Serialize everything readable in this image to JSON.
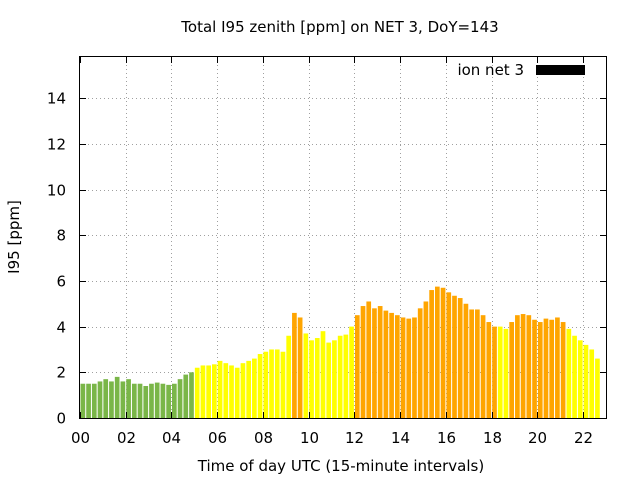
{
  "chart_data": {
    "type": "bar",
    "title": "Total I95 zenith [ppm] on NET 3, DoY=143",
    "xlabel": "Time of day UTC (15-minute intervals)",
    "ylabel": "I95 [ppm]",
    "xlim": [
      0,
      23
    ],
    "ylim": [
      0,
      15.8
    ],
    "x_ticks": [
      "00",
      "02",
      "04",
      "06",
      "08",
      "10",
      "12",
      "14",
      "16",
      "18",
      "20",
      "22"
    ],
    "y_ticks": [
      "0",
      "2",
      "4",
      "6",
      "8",
      "10",
      "12",
      "14"
    ],
    "grid": true,
    "legend": {
      "position": "top-right",
      "entries": [
        {
          "label": "ion net 3",
          "color": "#000000"
        }
      ]
    },
    "interval_hours": 0.25,
    "colors": {
      "green": "#7ab648",
      "yellow": "#ffff00",
      "orange": "#ffa500"
    },
    "values": [
      1.5,
      1.5,
      1.5,
      1.6,
      1.7,
      1.6,
      1.8,
      1.6,
      1.7,
      1.5,
      1.5,
      1.4,
      1.5,
      1.55,
      1.5,
      1.45,
      1.5,
      1.7,
      1.9,
      2.0,
      2.2,
      2.3,
      2.3,
      2.35,
      2.5,
      2.4,
      2.3,
      2.2,
      2.4,
      2.5,
      2.6,
      2.8,
      2.9,
      3.0,
      3.0,
      2.9,
      3.6,
      4.6,
      4.4,
      3.7,
      3.4,
      3.5,
      3.8,
      3.3,
      3.4,
      3.6,
      3.65,
      4.0,
      4.5,
      4.9,
      5.1,
      4.8,
      4.9,
      4.7,
      4.6,
      4.5,
      4.4,
      4.35,
      4.4,
      4.8,
      5.1,
      5.6,
      5.75,
      5.7,
      5.5,
      5.35,
      5.25,
      5.0,
      4.75,
      4.75,
      4.5,
      4.2,
      4.0,
      4.0,
      3.9,
      4.2,
      4.5,
      4.55,
      4.5,
      4.3,
      4.2,
      4.35,
      4.3,
      4.4,
      4.2,
      3.9,
      3.6,
      3.4,
      3.2,
      3.0,
      2.6
    ],
    "bar_colors": [
      "green",
      "green",
      "green",
      "green",
      "green",
      "green",
      "green",
      "green",
      "green",
      "green",
      "green",
      "green",
      "green",
      "green",
      "green",
      "green",
      "green",
      "green",
      "green",
      "green",
      "yellow",
      "yellow",
      "yellow",
      "yellow",
      "yellow",
      "yellow",
      "yellow",
      "yellow",
      "yellow",
      "yellow",
      "yellow",
      "yellow",
      "yellow",
      "yellow",
      "yellow",
      "yellow",
      "yellow",
      "orange",
      "orange",
      "yellow",
      "yellow",
      "yellow",
      "yellow",
      "yellow",
      "yellow",
      "yellow",
      "yellow",
      "yellow",
      "orange",
      "orange",
      "orange",
      "orange",
      "orange",
      "orange",
      "orange",
      "orange",
      "orange",
      "orange",
      "orange",
      "orange",
      "orange",
      "orange",
      "orange",
      "orange",
      "orange",
      "orange",
      "orange",
      "orange",
      "orange",
      "orange",
      "orange",
      "orange",
      "orange",
      "yellow",
      "yellow",
      "orange",
      "orange",
      "orange",
      "orange",
      "orange",
      "orange",
      "orange",
      "orange",
      "orange",
      "orange",
      "yellow",
      "yellow",
      "yellow",
      "yellow",
      "yellow",
      "yellow"
    ]
  }
}
